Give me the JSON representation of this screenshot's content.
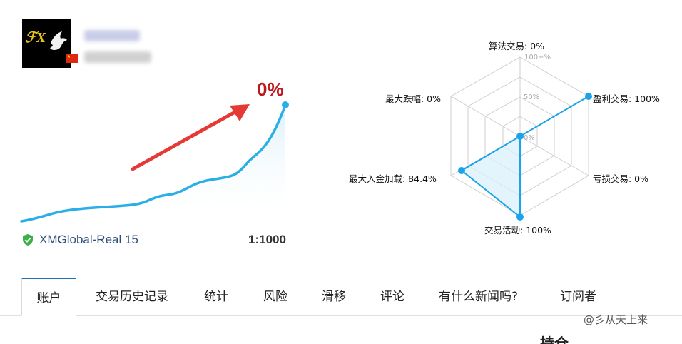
{
  "profile": {
    "avatar_icon": "dove-logo-icon",
    "flag_icon": "china-flag-icon"
  },
  "growth": {
    "value_label": "0%",
    "line_color": "#29aee6",
    "arrow_color": "#e53935"
  },
  "account": {
    "broker": "XMGlobal-Real 15",
    "leverage": "1:1000",
    "verified_icon": "verified-shield-icon",
    "verified_color": "#3fae49"
  },
  "radar": {
    "labels": {
      "algo": "算法交易: 0%",
      "profit": "盈利交易: 100%",
      "loss": "亏损交易: 0%",
      "activity": "交易活动: 100%",
      "deposit_load": "最大入金加载: 84.4%",
      "drawdown": "最大跌幅: 0%"
    },
    "scale": {
      "top": "100+%",
      "mid": "50%",
      "zero": "0%"
    },
    "values_percent": {
      "algo": 0,
      "profit": 100,
      "loss": 0,
      "activity": 100,
      "deposit_load": 84.4,
      "drawdown": 0
    },
    "color": "#1aa3e8"
  },
  "tabs": [
    {
      "label": "账户",
      "active": true
    },
    {
      "label": "交易历史记录"
    },
    {
      "label": "统计"
    },
    {
      "label": "风险"
    },
    {
      "label": "滑移"
    },
    {
      "label": "评论"
    },
    {
      "label": "有什么新闻吗?"
    },
    {
      "label": "订阅者"
    }
  ],
  "watermark": "@彡从天上来",
  "cut_heading": "持仓"
}
